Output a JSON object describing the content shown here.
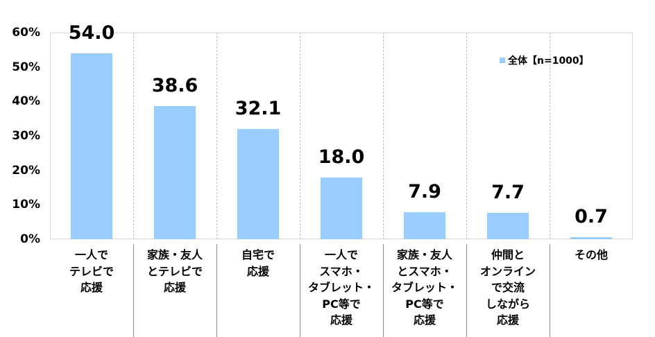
{
  "chart_data": {
    "type": "bar",
    "title": "",
    "xlabel": "",
    "ylabel": "",
    "ylim": [
      0,
      60
    ],
    "yticks": [
      "0%",
      "10%",
      "20%",
      "30%",
      "40%",
      "50%",
      "60%"
    ],
    "categories": [
      "一人で\nテレビで\n応援",
      "家族・友人\nとテレビで\n応援",
      "自宅で\n応援",
      "一人で\nスマホ・\nタブレット・\nPC等で\n応援",
      "家族・友人\nとスマホ・\nタブレット・\nPC等で\n応援",
      "仲間と\nオンライン\nで交流\nしながら\n応援",
      "その他"
    ],
    "series": [
      {
        "name": "全体【n=1000】",
        "color": "#99ccff",
        "values": [
          54.0,
          38.6,
          32.1,
          18.0,
          7.9,
          7.7,
          0.7
        ]
      }
    ],
    "value_labels": [
      "54.0",
      "38.6",
      "32.1",
      "18.0",
      "7.9",
      "7.7",
      "0.7"
    ],
    "legend": {
      "position": "top-right-inside",
      "label": "全体【n=1000】"
    },
    "grid": false
  }
}
